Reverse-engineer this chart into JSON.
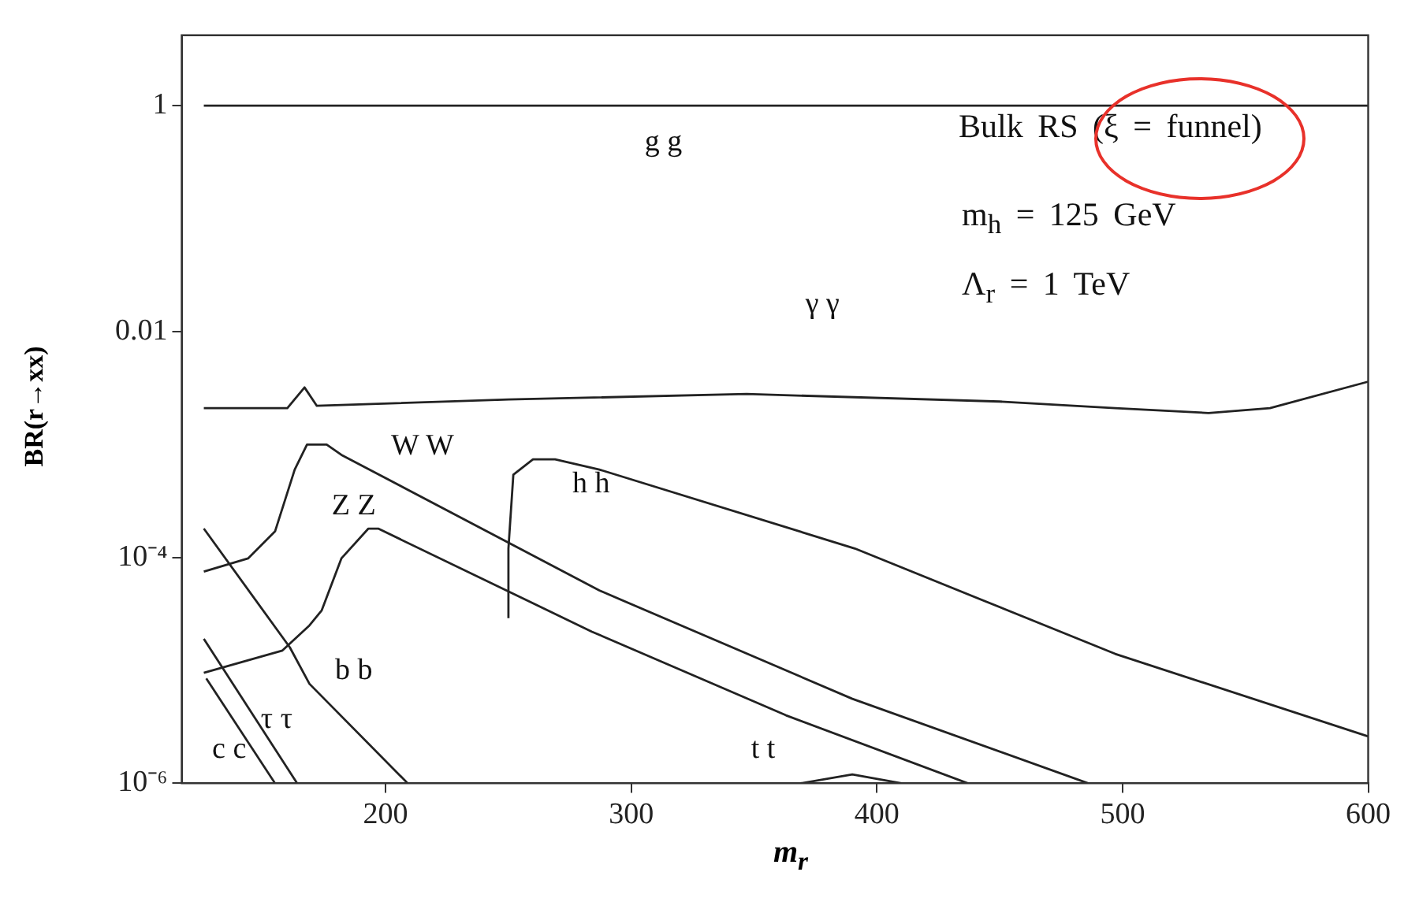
{
  "chart_data": {
    "type": "line",
    "xlabel": "m$_{r}$",
    "ylabel": "BR(r→xx)",
    "log": "y",
    "xlim": [
      117,
      600
    ],
    "xticks": [
      200,
      300,
      400,
      500,
      600
    ],
    "ylim": [
      1e-06,
      4.2
    ],
    "yticks": [
      1,
      0.01,
      {
        "value": 0.0001,
        "label": "10⁻⁴"
      },
      {
        "value": 1e-06,
        "label": "10⁻⁶"
      }
    ],
    "grid": false,
    "legend": false,
    "marker": "none",
    "line_style": "solid",
    "annotations": [
      "Bulk RS (ξ = funnel)",
      "m$_{h}$ = 125 GeV",
      "Λ$_{r}$ = 1 TeV"
    ],
    "series": [
      {
        "name": "g g",
        "color": "#222222",
        "x": [
          126,
          600
        ],
        "values": [
          1,
          1
        ]
      },
      {
        "name": "γ γ",
        "color": "#222222",
        "x": [
          126,
          160,
          167,
          172,
          250,
          347,
          450,
          497,
          535,
          560,
          600
        ],
        "values": [
          0.0021,
          0.0021,
          0.0032,
          0.0022,
          0.0025,
          0.0028,
          0.0024,
          0.0021,
          0.0019,
          0.0021,
          0.0036
        ]
      },
      {
        "name": "W W",
        "color": "#222222",
        "x": [
          126,
          144,
          155,
          163,
          168,
          176,
          182,
          287,
          390,
          486
        ],
        "values": [
          7.5e-05,
          9.8e-05,
          0.00017,
          0.0006,
          0.001,
          0.001,
          0.00081,
          5.1e-05,
          5.6e-06,
          1e-06
        ]
      },
      {
        "name": "Z Z",
        "color": "#222222",
        "x": [
          126,
          158,
          169,
          174,
          182,
          193,
          197,
          284,
          363,
          437
        ],
        "values": [
          9.5e-06,
          1.5e-05,
          2.5e-05,
          3.4e-05,
          9.8e-05,
          0.00018,
          0.00018,
          2.2e-05,
          4e-06,
          1e-06
        ]
      },
      {
        "name": "h h",
        "color": "#222222",
        "x": [
          250,
          250,
          252,
          260,
          269,
          287,
          391,
          497,
          600
        ],
        "values": [
          2.9e-05,
          0.00012,
          0.00054,
          0.00074,
          0.00074,
          0.0006,
          0.00012,
          1.4e-05,
          2.6e-06
        ]
      },
      {
        "name": "b b",
        "color": "#222222",
        "x": [
          126,
          161,
          169,
          209
        ],
        "values": [
          0.00018,
          1.6e-05,
          7.6e-06,
          1e-06
        ]
      },
      {
        "name": "τ τ",
        "color": "#222222",
        "x": [
          126,
          164
        ],
        "values": [
          1.9e-05,
          1e-06
        ]
      },
      {
        "name": "c c",
        "color": "#222222",
        "x": [
          127,
          155
        ],
        "values": [
          8.5e-06,
          1e-06
        ]
      },
      {
        "name": "t t",
        "color": "#222222",
        "x": [
          369,
          390,
          410
        ],
        "values": [
          1e-06,
          1.2e-06,
          1e-06
        ]
      }
    ]
  }
}
